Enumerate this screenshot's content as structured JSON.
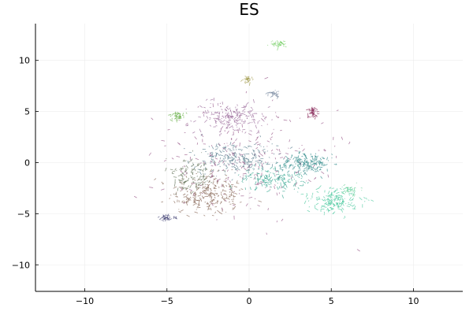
{
  "chart_data": {
    "type": "scatter",
    "title": "ES",
    "xlabel": "",
    "ylabel": "",
    "xlim": [
      -13,
      13
    ],
    "ylim": [
      -12.6,
      13.6
    ],
    "grid": true,
    "legend": "none",
    "x_ticks": [
      -10,
      -5,
      0,
      5,
      10
    ],
    "y_ticks": [
      -10,
      -5,
      0,
      5,
      10
    ],
    "x_tick_labels": [
      "−10",
      "−5",
      "0",
      "5",
      "10"
    ],
    "y_tick_labels": [
      "−10",
      "−5",
      "0",
      "5",
      "10"
    ],
    "clusters": [
      {
        "center": [
          -2.5,
          -3.0
        ],
        "spread": [
          2.0,
          1.8
        ],
        "color": "#8a6a5a",
        "count": 260
      },
      {
        "center": [
          -1.0,
          0.5
        ],
        "spread": [
          2.2,
          1.4
        ],
        "color": "#5a7f8f",
        "count": 220
      },
      {
        "center": [
          -1.0,
          4.5
        ],
        "spread": [
          2.0,
          1.4
        ],
        "color": "#9a6a9a",
        "count": 200
      },
      {
        "center": [
          3.5,
          0.0
        ],
        "spread": [
          1.4,
          1.0
        ],
        "color": "#2f8a8a",
        "count": 180
      },
      {
        "center": [
          5.2,
          -3.6
        ],
        "spread": [
          1.4,
          1.1
        ],
        "color": "#4ec9a0",
        "count": 170
      },
      {
        "center": [
          1.5,
          -1.5
        ],
        "spread": [
          1.8,
          1.0
        ],
        "color": "#3aa893",
        "count": 160
      },
      {
        "center": [
          -3.5,
          -1.0
        ],
        "spread": [
          1.4,
          1.4
        ],
        "color": "#6a7a60",
        "count": 120
      },
      {
        "center": [
          -5.0,
          -5.3
        ],
        "spread": [
          0.5,
          0.3
        ],
        "color": "#4a4a7a",
        "count": 40
      },
      {
        "center": [
          3.9,
          5.0
        ],
        "spread": [
          0.35,
          0.6
        ],
        "color": "#8a2a5a",
        "count": 45
      },
      {
        "center": [
          -4.3,
          4.6
        ],
        "spread": [
          0.35,
          0.4
        ],
        "color": "#6ab04a",
        "count": 35
      },
      {
        "center": [
          1.8,
          11.7
        ],
        "spread": [
          0.45,
          0.3
        ],
        "color": "#7ad06a",
        "count": 35
      },
      {
        "center": [
          -0.1,
          8.2
        ],
        "spread": [
          0.3,
          0.3
        ],
        "color": "#a09a4a",
        "count": 25
      },
      {
        "center": [
          1.5,
          6.8
        ],
        "spread": [
          0.4,
          0.3
        ],
        "color": "#7a8aa0",
        "count": 25
      },
      {
        "center": [
          6.2,
          -2.6
        ],
        "spread": [
          0.5,
          0.4
        ],
        "color": "#6ad09a",
        "count": 30
      },
      {
        "center": [
          0.0,
          0.0
        ],
        "spread": [
          5.0,
          5.0
        ],
        "color": "#9a5a8a",
        "count": 230
      }
    ]
  }
}
